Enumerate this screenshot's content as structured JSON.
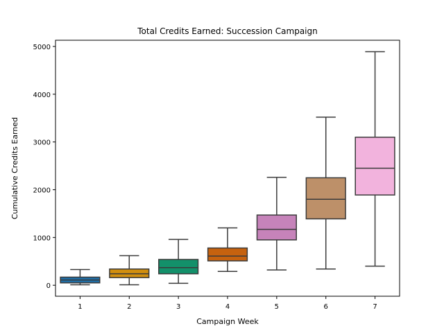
{
  "chart_data": {
    "type": "box",
    "title": "Total Credits Earned: Succession Campaign",
    "xlabel": "Campaign Week",
    "ylabel": "Cumulative Credits Earned",
    "ylim": [
      -230,
      5130
    ],
    "yticks": [
      0,
      1000,
      2000,
      3000,
      4000,
      5000
    ],
    "categories": [
      "1",
      "2",
      "3",
      "4",
      "5",
      "6",
      "7"
    ],
    "boxes": [
      {
        "label": "1",
        "min": 10,
        "q1": 50,
        "median": 110,
        "q3": 170,
        "max": 330,
        "color": "#1f6fa8"
      },
      {
        "label": "2",
        "min": 10,
        "q1": 160,
        "median": 240,
        "q3": 340,
        "max": 620,
        "color": "#d18f0f"
      },
      {
        "label": "3",
        "min": 40,
        "q1": 240,
        "median": 370,
        "q3": 540,
        "max": 960,
        "color": "#13906a"
      },
      {
        "label": "4",
        "min": 290,
        "q1": 510,
        "median": 610,
        "q3": 780,
        "max": 1200,
        "color": "#c6620f"
      },
      {
        "label": "5",
        "min": 320,
        "q1": 950,
        "median": 1170,
        "q3": 1470,
        "max": 2260,
        "color": "#c683ba"
      },
      {
        "label": "6",
        "min": 340,
        "q1": 1390,
        "median": 1800,
        "q3": 2250,
        "max": 3520,
        "color": "#bd9069"
      },
      {
        "label": "7",
        "min": 400,
        "q1": 1890,
        "median": 2450,
        "q3": 3100,
        "max": 4890,
        "color": "#f2b3dd"
      }
    ]
  }
}
